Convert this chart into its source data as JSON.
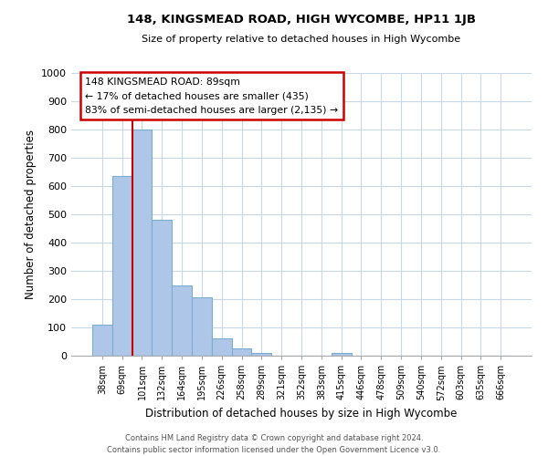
{
  "title": "148, KINGSMEAD ROAD, HIGH WYCOMBE, HP11 1JB",
  "subtitle": "Size of property relative to detached houses in High Wycombe",
  "xlabel": "Distribution of detached houses by size in High Wycombe",
  "ylabel": "Number of detached properties",
  "bar_labels": [
    "38sqm",
    "69sqm",
    "101sqm",
    "132sqm",
    "164sqm",
    "195sqm",
    "226sqm",
    "258sqm",
    "289sqm",
    "321sqm",
    "352sqm",
    "383sqm",
    "415sqm",
    "446sqm",
    "478sqm",
    "509sqm",
    "540sqm",
    "572sqm",
    "603sqm",
    "635sqm",
    "666sqm"
  ],
  "bar_values": [
    110,
    635,
    800,
    480,
    250,
    205,
    60,
    25,
    10,
    0,
    0,
    0,
    10,
    0,
    0,
    0,
    0,
    0,
    0,
    0,
    0
  ],
  "bar_color": "#aec6e8",
  "bar_edge_color": "#7aaed0",
  "vline_color": "#cc0000",
  "ylim": [
    0,
    1000
  ],
  "yticks": [
    0,
    100,
    200,
    300,
    400,
    500,
    600,
    700,
    800,
    900,
    1000
  ],
  "annotation_title": "148 KINGSMEAD ROAD: 89sqm",
  "annotation_line1": "← 17% of detached houses are smaller (435)",
  "annotation_line2": "83% of semi-detached houses are larger (2,135) →",
  "footer_line1": "Contains HM Land Registry data © Crown copyright and database right 2024.",
  "footer_line2": "Contains public sector information licensed under the Open Government Licence v3.0.",
  "background_color": "#ffffff",
  "grid_color": "#c8d8e8"
}
